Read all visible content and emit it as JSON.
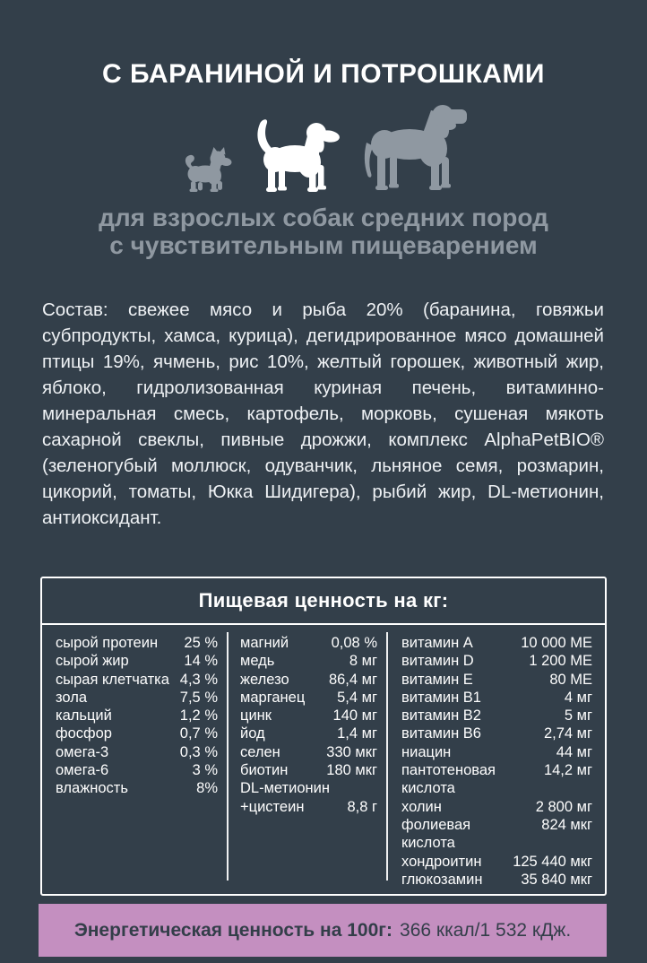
{
  "colors": {
    "background": "#333f4a",
    "title_text": "#ffffff",
    "subtitle_text": "#8f98a1",
    "box_border": "#ffffff",
    "table_text": "#fdfdfd",
    "energy_bar_bg": "#c48fc0",
    "energy_text": "#333e49"
  },
  "header": {
    "title": "С БАРАНИНОЙ И ПОТРОШКАМИ",
    "subtitle_line1": "для взрослых собак средних пород",
    "subtitle_line2": "с чувствительным пищеварением"
  },
  "dogs": {
    "small": {
      "label": "small-breed-dog",
      "color": "#8f98a1"
    },
    "medium": {
      "label": "medium-breed-dog",
      "color": "#ffffff"
    },
    "large": {
      "label": "large-breed-dog",
      "color": "#8f98a1"
    }
  },
  "composition": {
    "text": "Состав: свежее мясо и рыба 20% (баранина, говяжьи субпродукты, хамса, курица), дегидрированное мясо домашней птицы 19%, ячмень, рис 10%, желтый горошек, животный жир, яблоко, гидролизованная куриная печень, витаминно-минеральная смесь, картофель, морковь, сушеная мякоть сахарной свеклы, пивные дрожжи, комплекс AlphaPetBIO® (зеленогубый моллюск, одуванчик, льняное семя, розмарин, цикорий, томаты, Юкка Шидигера), рыбий жир, DL-метионин, антиоксидант."
  },
  "nutrition": {
    "title": "Пищевая ценность на кг:",
    "col1": [
      {
        "label": "сырой протеин",
        "value": "25 %"
      },
      {
        "label": "сырой жир",
        "value": "14 %"
      },
      {
        "label": "сырая клетчатка",
        "value": "4,3 %"
      },
      {
        "label": "зола",
        "value": "7,5 %"
      },
      {
        "label": "кальций",
        "value": "1,2 %"
      },
      {
        "label": "фосфор",
        "value": "0,7 %"
      },
      {
        "label": "омега-3",
        "value": "0,3 %"
      },
      {
        "label": "омега-6",
        "value": "3 %"
      },
      {
        "label": "влажность",
        "value": "8%"
      }
    ],
    "col2": [
      {
        "label": "магний",
        "value": "0,08 %"
      },
      {
        "label": "медь",
        "value": "8 мг"
      },
      {
        "label": "железо",
        "value": "86,4 мг"
      },
      {
        "label": "марганец",
        "value": "5,4 мг"
      },
      {
        "label": "цинк",
        "value": "140 мг"
      },
      {
        "label": "йод",
        "value": "1,4 мг"
      },
      {
        "label": "селен",
        "value": "330 мкг"
      },
      {
        "label": "биотин",
        "value": "180 мкг"
      },
      {
        "label": "DL-метионин",
        "value": ""
      },
      {
        "label": "+цистеин",
        "value": "8,8 г"
      }
    ],
    "col3": [
      {
        "label": "витамин A",
        "value": "10 000 МЕ"
      },
      {
        "label": "витамин D",
        "value": "1 200 МЕ"
      },
      {
        "label": "витамин E",
        "value": "80 МЕ"
      },
      {
        "label": "витамин B1",
        "value": "4 мг"
      },
      {
        "label": "витамин B2",
        "value": "5 мг"
      },
      {
        "label": "витамин B6",
        "value": "2,74 мг"
      },
      {
        "label": "ниацин",
        "value": "44 мг"
      },
      {
        "label": "пантотеновая",
        "value": "14,2 мг"
      },
      {
        "label": "кислота",
        "value": ""
      },
      {
        "label": "холин",
        "value": "2 800 мг"
      },
      {
        "label": "фолиевая",
        "value": "824 мкг"
      },
      {
        "label": "кислота",
        "value": ""
      },
      {
        "label": "хондроитин",
        "value": "125 440 мкг"
      },
      {
        "label": "глюкозамин",
        "value": "35 840 мкг"
      }
    ]
  },
  "energy": {
    "label": "Энергетическая ценность на 100г:",
    "value": "366 ккал/1 532 кДж."
  }
}
